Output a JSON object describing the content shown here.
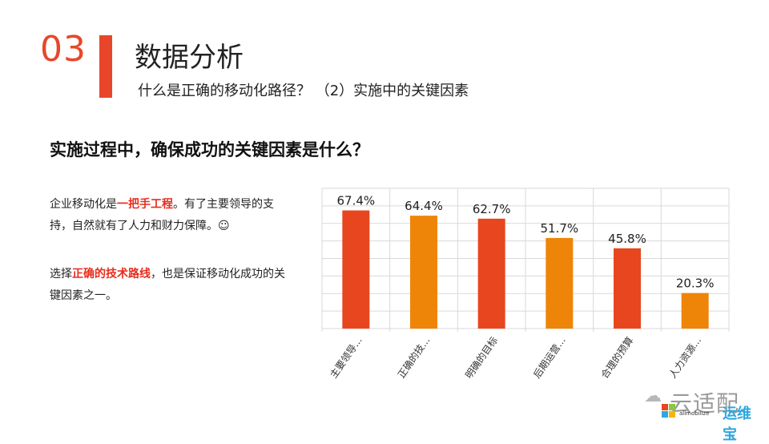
{
  "header": {
    "section_number": "03",
    "title": "数据分析",
    "subtitle": "什么是正确的移动化路径？ （2）实施中的关键因素"
  },
  "question": "实施过程中，确保成功的关键因素是什么？",
  "paragraph1": {
    "pre": "企业移动化是",
    "highlight": "一把手工程",
    "post": "。有了主要领导的支持，自然就有了人力和财力保障。☺"
  },
  "paragraph2": {
    "pre": "选择",
    "highlight": "正确的技术路线",
    "post": "，也是保证移动化成功的关键因素之一。"
  },
  "chart_data": {
    "type": "bar",
    "categories": [
      "主要领导...",
      "正确的技...",
      "明确的目标",
      "后期运营...",
      "合理的预算",
      "人力资源..."
    ],
    "values": [
      67.4,
      64.4,
      62.7,
      51.7,
      45.8,
      20.3
    ],
    "data_labels": [
      "67.4%",
      "64.4%",
      "62.7%",
      "51.7%",
      "45.8%",
      "20.3%"
    ],
    "colors": [
      "#e8461f",
      "#ee8509",
      "#e8461f",
      "#ee8509",
      "#e8461f",
      "#ee8509"
    ],
    "ylim": [
      0,
      80
    ],
    "grid": true,
    "legend": "none"
  },
  "watermark": {
    "chinese": "云适配",
    "english": "allmobilize",
    "brand": "运维宝"
  }
}
